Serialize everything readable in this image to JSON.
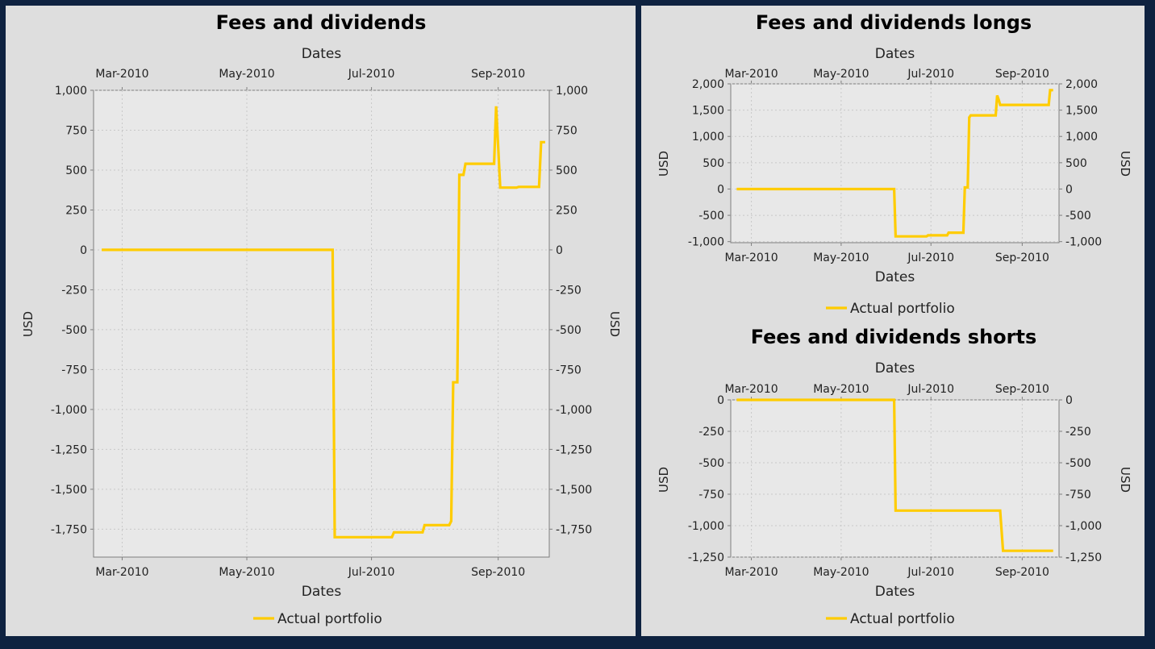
{
  "chart_data": [
    {
      "type": "line",
      "title": "Fees and dividends",
      "xlabel": "Dates",
      "ylabel": "USD",
      "x_ticks": [
        "Mar-2010",
        "May-2010",
        "Jul-2010",
        "Sep-2010"
      ],
      "y_ticks": [
        "1,000",
        "750",
        "500",
        "250",
        "0",
        "-250",
        "-500",
        "-750",
        "-1,000",
        "-1,250",
        "-1,500",
        "-1,750"
      ],
      "ylim": [
        -1925,
        1000
      ],
      "xlim": [
        "2010-02-15",
        "2010-09-26"
      ],
      "grid": true,
      "legend_position": "bottom",
      "series": [
        {
          "name": "Actual portfolio",
          "color": "#ffcc00",
          "step": true,
          "points": [
            [
              "2010-02-19",
              0
            ],
            [
              "2010-06-12",
              0
            ],
            [
              "2010-06-13",
              -1800
            ],
            [
              "2010-07-11",
              -1800
            ],
            [
              "2010-07-12",
              -1770
            ],
            [
              "2010-07-26",
              -1770
            ],
            [
              "2010-07-27",
              -1725
            ],
            [
              "2010-08-08",
              -1725
            ],
            [
              "2010-08-09",
              -1700
            ],
            [
              "2010-08-10",
              -830
            ],
            [
              "2010-08-12",
              -830
            ],
            [
              "2010-08-13",
              470
            ],
            [
              "2010-08-15",
              470
            ],
            [
              "2010-08-16",
              540
            ],
            [
              "2010-08-30",
              540
            ],
            [
              "2010-08-31",
              900
            ],
            [
              "2010-09-02",
              390
            ],
            [
              "2010-09-10",
              390
            ],
            [
              "2010-09-11",
              395
            ],
            [
              "2010-09-21",
              395
            ],
            [
              "2010-09-22",
              675
            ],
            [
              "2010-09-24",
              675
            ]
          ]
        }
      ]
    },
    {
      "type": "line",
      "title": "Fees and dividends longs",
      "xlabel": "Dates",
      "ylabel": "USD",
      "x_ticks": [
        "Mar-2010",
        "May-2010",
        "Jul-2010",
        "Sep-2010"
      ],
      "y_ticks": [
        "2,000",
        "1,500",
        "1,000",
        "500",
        "0",
        "-500",
        "-1,000"
      ],
      "ylim": [
        -1020,
        2000
      ],
      "xlim": [
        "2010-02-15",
        "2010-09-26"
      ],
      "grid": true,
      "legend_position": "bottom",
      "series": [
        {
          "name": "Actual portfolio",
          "color": "#ffcc00",
          "step": true,
          "points": [
            [
              "2010-02-19",
              0
            ],
            [
              "2010-06-06",
              0
            ],
            [
              "2010-06-07",
              -900
            ],
            [
              "2010-06-28",
              -900
            ],
            [
              "2010-06-29",
              -880
            ],
            [
              "2010-07-12",
              -880
            ],
            [
              "2010-07-13",
              -830
            ],
            [
              "2010-07-23",
              -830
            ],
            [
              "2010-07-24",
              30
            ],
            [
              "2010-07-26",
              30
            ],
            [
              "2010-07-27",
              1360
            ],
            [
              "2010-07-28",
              1400
            ],
            [
              "2010-08-14",
              1400
            ],
            [
              "2010-08-15",
              1780
            ],
            [
              "2010-08-16",
              1700
            ],
            [
              "2010-08-17",
              1600
            ],
            [
              "2010-09-19",
              1600
            ],
            [
              "2010-09-20",
              1880
            ],
            [
              "2010-09-22",
              1880
            ]
          ]
        }
      ]
    },
    {
      "type": "line",
      "title": "Fees and dividends shorts",
      "xlabel": "Dates",
      "ylabel": "USD",
      "x_ticks": [
        "Mar-2010",
        "May-2010",
        "Jul-2010",
        "Sep-2010"
      ],
      "y_ticks": [
        "0",
        "-250",
        "-500",
        "-750",
        "-1,000",
        "-1,250"
      ],
      "ylim": [
        -1250,
        0
      ],
      "xlim": [
        "2010-02-15",
        "2010-09-26"
      ],
      "grid": true,
      "legend_position": "bottom",
      "series": [
        {
          "name": "Actual portfolio",
          "color": "#ffcc00",
          "step": true,
          "points": [
            [
              "2010-02-19",
              0
            ],
            [
              "2010-06-06",
              0
            ],
            [
              "2010-06-07",
              -880
            ],
            [
              "2010-08-17",
              -880
            ],
            [
              "2010-08-19",
              -1200
            ],
            [
              "2010-09-22",
              -1200
            ]
          ]
        }
      ]
    }
  ]
}
